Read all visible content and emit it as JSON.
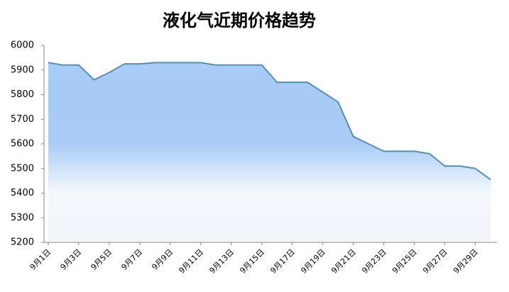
{
  "chart_data": {
    "type": "area",
    "title": "液化气近期价格趋势",
    "categories": [
      "9月1日",
      null,
      "9月3日",
      null,
      "9月5日",
      null,
      "9月7日",
      null,
      "9月9日",
      null,
      "9月11日",
      null,
      "9月13日",
      null,
      "9月15日",
      null,
      "9月17日",
      null,
      "9月19日",
      null,
      "9月21日",
      null,
      "9月23日",
      null,
      "9月25日",
      null,
      "9月27日",
      null,
      "9月29日",
      null
    ],
    "values": [
      5930,
      5920,
      5920,
      5860,
      5890,
      5925,
      5925,
      5930,
      5930,
      5930,
      5930,
      5920,
      5920,
      5920,
      5920,
      5850,
      5850,
      5850,
      5810,
      5770,
      5630,
      5600,
      5570,
      5570,
      5570,
      5560,
      5510,
      5510,
      5500,
      5455
    ],
    "color": "#5b8fa8",
    "ylim": [
      5200,
      6000
    ],
    "yticks": [
      5200,
      5300,
      5400,
      5500,
      5600,
      5700,
      5800,
      5900,
      6000
    ]
  }
}
